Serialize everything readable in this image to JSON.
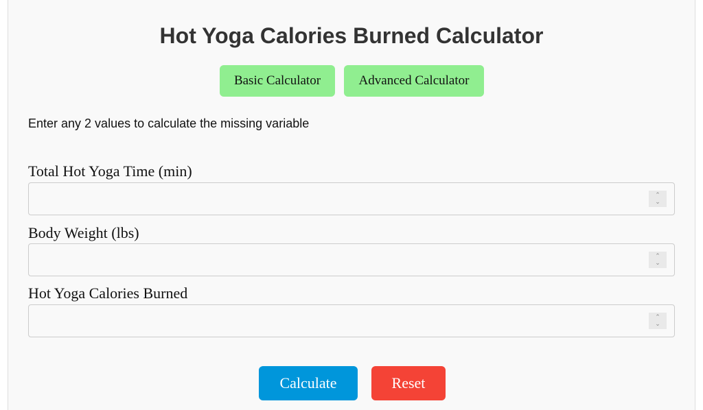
{
  "title": "Hot Yoga Calories Burned Calculator",
  "tabs": [
    {
      "label": "Basic Calculator"
    },
    {
      "label": "Advanced Calculator"
    }
  ],
  "instruction": "Enter any 2 values to calculate the missing variable",
  "fields": [
    {
      "label": "Total Hot Yoga Time (min)",
      "value": ""
    },
    {
      "label": "Body Weight (lbs)",
      "value": ""
    },
    {
      "label": "Hot Yoga Calories Burned",
      "value": ""
    }
  ],
  "buttons": {
    "calculate": "Calculate",
    "reset": "Reset"
  },
  "colors": {
    "tab": "#90ee90",
    "calculate": "#0096db",
    "reset": "#f44336"
  }
}
